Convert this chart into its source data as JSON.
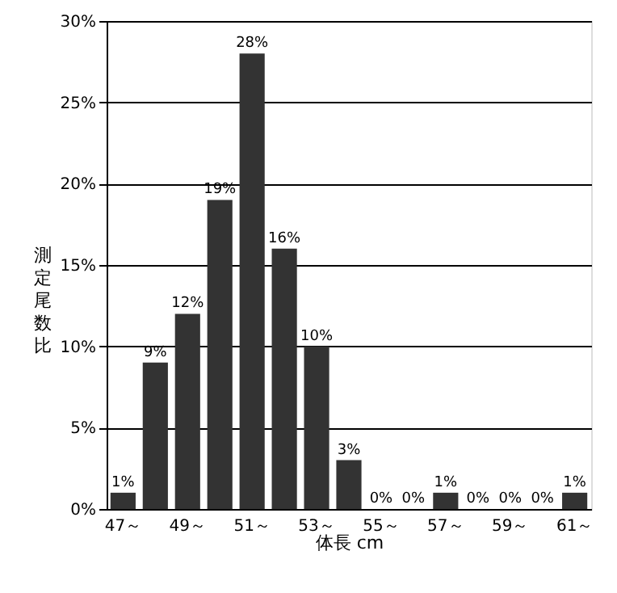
{
  "chart_data": {
    "type": "bar",
    "categories": [
      "47～",
      null,
      "49～",
      null,
      "51～",
      null,
      "53～",
      null,
      "55～",
      null,
      "57～",
      null,
      "59～",
      null,
      "61～"
    ],
    "values": [
      1,
      9,
      12,
      19,
      28,
      16,
      10,
      3,
      0,
      0,
      1,
      0,
      0,
      0,
      1
    ],
    "value_labels": [
      "1%",
      "9%",
      "12%",
      "19%",
      "28%",
      "16%",
      "10%",
      "3%",
      "0%",
      "0%",
      "1%",
      "0%",
      "0%",
      "0%",
      "1%"
    ],
    "color": "#333333",
    "xlabel": "体長 cm",
    "ylabel": "測定尾数比",
    "ylim": [
      0,
      30
    ],
    "yticks": [
      {
        "value": 0,
        "label": "0%"
      },
      {
        "value": 5,
        "label": "5%"
      },
      {
        "value": 10,
        "label": "10%"
      },
      {
        "value": 15,
        "label": "15%"
      },
      {
        "value": 20,
        "label": "20%"
      },
      {
        "value": 25,
        "label": "25%"
      },
      {
        "value": 30,
        "label": "30%"
      }
    ],
    "grid": "y"
  }
}
